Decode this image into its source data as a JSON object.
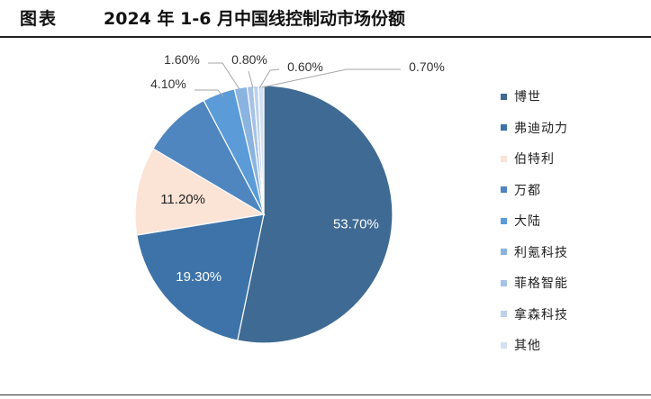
{
  "header": {
    "figure_label": "图表",
    "title": "2024 年 1-6 月中国线控制动市场份额"
  },
  "chart_data": {
    "type": "pie",
    "title": "2024 年 1-6 月中国线控制动市场份额",
    "slices": [
      {
        "label": "博世",
        "value": 53.7,
        "display": "53.70%",
        "color": "#3f6a93"
      },
      {
        "label": "弗迪动力",
        "value": 19.3,
        "display": "19.30%",
        "color": "#3d73a8"
      },
      {
        "label": "伯特利",
        "value": 11.2,
        "display": "11.20%",
        "color": "#fbe3d6"
      },
      {
        "label": "万都",
        "value": 8.8,
        "display": "",
        "color": "#4f86bf"
      },
      {
        "label": "大陆",
        "value": 4.1,
        "display": "4.10%",
        "color": "#5a9bd8"
      },
      {
        "label": "利氪科技",
        "value": 1.6,
        "display": "1.60%",
        "color": "#8bb3e0"
      },
      {
        "label": "菲格智能",
        "value": 0.8,
        "display": "0.80%",
        "color": "#a6c2e6"
      },
      {
        "label": "拿森科技",
        "value": 0.6,
        "display": "0.60%",
        "color": "#bcd1ec"
      },
      {
        "label": "其他",
        "value": 0.7,
        "display": "0.70%",
        "color": "#d3e1f2"
      }
    ],
    "start_angle_deg": 0,
    "direction": "clockwise",
    "legend_position": "right"
  }
}
